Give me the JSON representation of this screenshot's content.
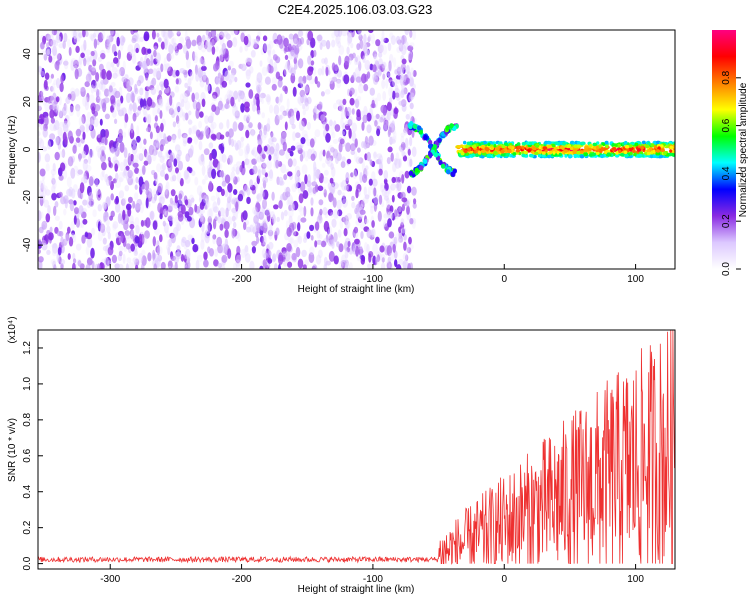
{
  "title": "C2E4.2025.106.03.03.G23",
  "chart_data": [
    {
      "type": "heatmap",
      "xlabel": "Height of straight line (km)",
      "ylabel": "Frequency (Hz)",
      "xlim": [
        -355,
        130
      ],
      "ylim": [
        -50,
        50
      ],
      "x_ticks": [
        -300,
        -200,
        -100,
        0,
        100
      ],
      "y_ticks": [
        40,
        20,
        0,
        -20,
        -40
      ],
      "colorbar": {
        "label": "Normalized spectral amplitude",
        "range": [
          0,
          1
        ],
        "ticks": [
          0.0,
          0.2,
          0.4,
          0.6,
          0.8
        ],
        "colors": [
          "#ffffff",
          "#dcc8ff",
          "#8a2be2",
          "#0000ff",
          "#00ffff",
          "#00ff00",
          "#ffff00",
          "#ff8000",
          "#ff0000",
          "#ff0080"
        ]
      },
      "regions": [
        {
          "x_range": [
            -355,
            -68
          ],
          "freq_range": [
            -50,
            50
          ],
          "amplitude_range": [
            0.0,
            0.2
          ]
        },
        {
          "x_range": [
            -72,
            -36
          ],
          "freq_range": [
            -10,
            10
          ],
          "amplitude_range": [
            0.2,
            0.6
          ]
        },
        {
          "x_range": [
            -36,
            130
          ],
          "freq_range": [
            -3,
            3
          ],
          "amplitude_range": [
            0.4,
            1.0
          ],
          "peak_freq": 0
        }
      ],
      "grid": false
    },
    {
      "type": "line",
      "xlabel": "Height of straight line (km)",
      "ylabel": "SNR (10 * v/v)",
      "y_multiplier": "(x10⁴)",
      "xlim": [
        -355,
        130
      ],
      "ylim": [
        -0.03,
        1.3
      ],
      "x_ticks": [
        -300,
        -200,
        -100,
        0,
        100
      ],
      "y_ticks": [
        0.0,
        0.2,
        0.4,
        0.6,
        0.8,
        1.0,
        1.2
      ],
      "series_color": "#ee3030",
      "segments": [
        {
          "x_range": [
            -355,
            -50
          ],
          "baseline": 0.02,
          "noise_amplitude": 0.03
        },
        {
          "x_range": [
            -50,
            130
          ],
          "start_level": 0.05,
          "end_level": 0.65,
          "noise_amplitude": 0.6,
          "max": 1.3
        }
      ],
      "grid": false
    }
  ]
}
